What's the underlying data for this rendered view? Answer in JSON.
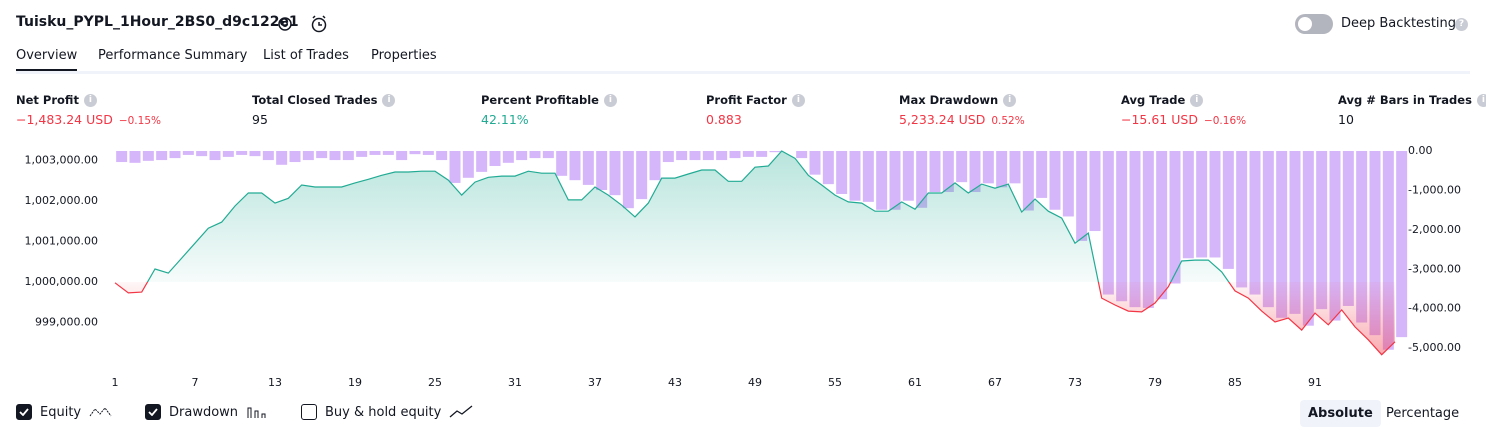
{
  "header": {
    "title": "Tuisku_PYPL_1Hour_2BS0_d9c122e1",
    "deep_backtesting": "Deep Backtesting"
  },
  "tabs": [
    "Overview",
    "Performance Summary",
    "List of Trades",
    "Properties"
  ],
  "metrics": [
    {
      "label": "Net Profit",
      "value": "−1,483.24 USD",
      "change": "−0.15%"
    },
    {
      "label": "Total Closed Trades",
      "value": "95"
    },
    {
      "label": "Percent Profitable",
      "value": "42.11%"
    },
    {
      "label": "Profit Factor",
      "value": "0.883"
    },
    {
      "label": "Max Drawdown",
      "value": "5,233.24 USD",
      "change": "0.52%"
    },
    {
      "label": "Avg Trade",
      "value": "−15.61 USD",
      "change": "−0.16%"
    },
    {
      "label": "Avg # Bars in Trades",
      "value": "10"
    }
  ],
  "chart_data": {
    "type": "combo",
    "categories": [
      1,
      null,
      null,
      null,
      null,
      null,
      7,
      null,
      null,
      null,
      null,
      null,
      13,
      null,
      null,
      null,
      null,
      null,
      19,
      null,
      null,
      null,
      null,
      null,
      25,
      null,
      null,
      null,
      null,
      null,
      31,
      null,
      null,
      null,
      null,
      null,
      37,
      null,
      null,
      null,
      null,
      null,
      43,
      null,
      null,
      null,
      null,
      null,
      49,
      null,
      null,
      null,
      null,
      null,
      55,
      null,
      null,
      null,
      null,
      null,
      61,
      null,
      null,
      null,
      null,
      null,
      67,
      null,
      null,
      null,
      null,
      null,
      73,
      null,
      null,
      null,
      null,
      null,
      79,
      null,
      null,
      null,
      null,
      null,
      85,
      null,
      null,
      null,
      null,
      null,
      91,
      null,
      null,
      null,
      null,
      null,
      null
    ],
    "series": [
      {
        "name": "Equity",
        "color": "#22ab94",
        "negative_color": "#f23645",
        "values": [
          999980,
          999730,
          999750,
          1000320,
          1000220,
          1000590,
          1000960,
          1001330,
          1001480,
          1001880,
          1002200,
          1002200,
          1001950,
          1002070,
          1002400,
          1002350,
          1002350,
          1002350,
          1002450,
          1002540,
          1002640,
          1002720,
          1002720,
          1002740,
          1002740,
          1002520,
          1002150,
          1002470,
          1002590,
          1002620,
          1002620,
          1002740,
          1002690,
          1002690,
          1002030,
          1002030,
          1002350,
          1002150,
          1001900,
          1001610,
          1001950,
          1002570,
          1002570,
          1002670,
          1002770,
          1002770,
          1002490,
          1002490,
          1002840,
          1002870,
          1003240,
          1003060,
          1002640,
          1002400,
          1002150,
          1001980,
          1001950,
          1001750,
          1001750,
          1001980,
          1001800,
          1002200,
          1002200,
          1002450,
          1002200,
          1002420,
          1002320,
          1002420,
          1001730,
          1002050,
          1001750,
          1001580,
          1000960,
          1001210,
          999600,
          999430,
          999280,
          999260,
          999480,
          999880,
          1000520,
          1000540,
          1000540,
          1000250,
          999780,
          999600,
          999280,
          999010,
          999110,
          998810,
          999230,
          998940,
          999310,
          998890,
          998570,
          998200,
          998520
        ]
      },
      {
        "name": "Drawdown",
        "color": "#d6b6fa",
        "axis": "y2",
        "values": [
          -280,
          -300,
          -250,
          -230,
          -180,
          -100,
          -130,
          -230,
          -150,
          -100,
          -130,
          -230,
          -350,
          -280,
          -230,
          -180,
          -230,
          -230,
          -150,
          -100,
          -100,
          -230,
          -80,
          -100,
          -230,
          -810,
          -680,
          -530,
          -380,
          -300,
          -230,
          -180,
          -180,
          -630,
          -740,
          -860,
          -990,
          -1120,
          -1450,
          -1220,
          -740,
          -280,
          -230,
          -230,
          -230,
          -230,
          -180,
          -150,
          -150,
          -30,
          0,
          -180,
          -600,
          -840,
          -1090,
          -1260,
          -1290,
          -1490,
          -1490,
          -1260,
          -1440,
          -1040,
          -1040,
          -790,
          -1040,
          -820,
          -920,
          -820,
          -1510,
          -1190,
          -1490,
          -1660,
          -2280,
          -2030,
          -3640,
          -3810,
          -3960,
          -3980,
          -3760,
          -3360,
          -2720,
          -2700,
          -2700,
          -2990,
          -3460,
          -3640,
          -3960,
          -4230,
          -4130,
          -4430,
          -4010,
          -4300,
          -3930,
          -4350,
          -4670,
          -5040,
          -4720
        ]
      }
    ],
    "ylim": [
      998070,
      1003240
    ],
    "yticks": [
      {
        "value": 1003000,
        "label": "1,003,000.00"
      },
      {
        "value": 1002000,
        "label": "1,002,000.00"
      },
      {
        "value": 1001000,
        "label": "1,001,000.00"
      },
      {
        "value": 1000000,
        "label": "1,000,000.00"
      },
      {
        "value": 999000,
        "label": "999,000.00"
      }
    ],
    "y2lim": [
      -5300,
      0
    ],
    "y2ticks": [
      {
        "value": 0,
        "label": "0.00"
      },
      {
        "value": -1000,
        "label": "-1,000.00"
      },
      {
        "value": -2000,
        "label": "-2,000.00"
      },
      {
        "value": -3000,
        "label": "-3,000.00"
      },
      {
        "value": -4000,
        "label": "-4,000.00"
      },
      {
        "value": -5000,
        "label": "-5,000.00"
      }
    ],
    "grid": false
  },
  "options": {
    "buy_and_hold": "Buy & hold equity",
    "modes": [
      "Absolute",
      "Percentage"
    ]
  }
}
